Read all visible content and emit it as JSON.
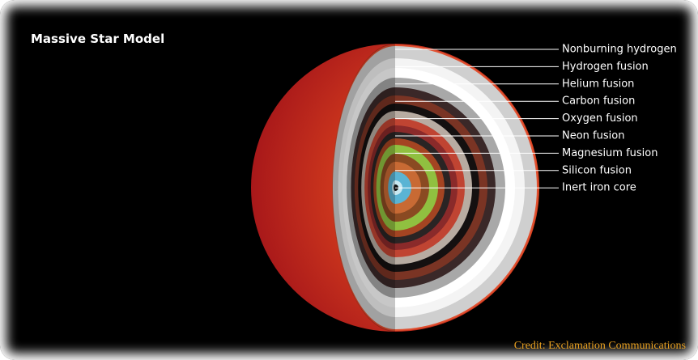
{
  "title": "Massive Star Model",
  "labels": [
    "Nonburning hydrogen",
    "Hydrogen fusion",
    "Helium fusion",
    "Carbon fusion",
    "Oxygen fusion",
    "Neon fusion",
    "Magnesium fusion",
    "Silicon fusion",
    "Inert iron core"
  ],
  "credit": "Credit: Exclamation Communications"
}
